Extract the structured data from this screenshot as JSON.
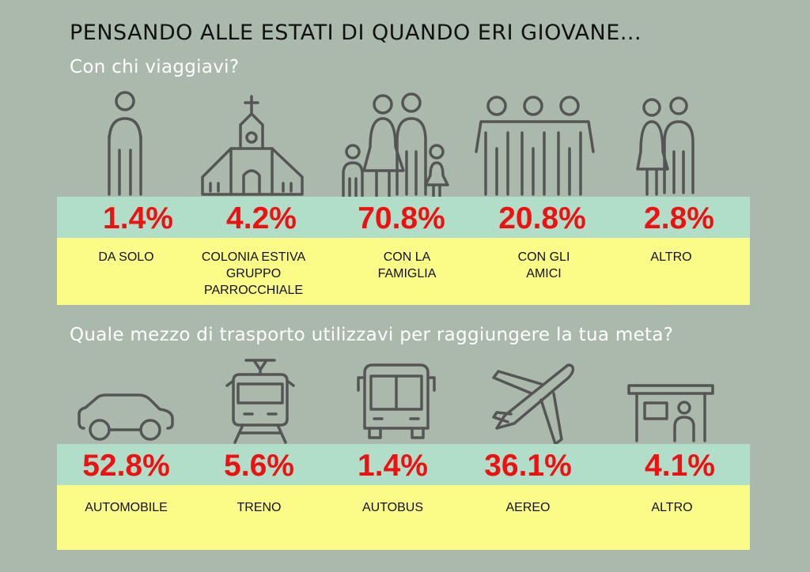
{
  "header": {
    "title": "PENSANDO ALLE ESTATI DI QUANDO ERI GIOVANE...",
    "question1": "Con chi viaggiavi?",
    "question2": "Quale mezzo di trasporto utilizzavi per raggiungere la tua meta?"
  },
  "travel_companions": [
    {
      "icon": "person-icon",
      "percent": "1.4%",
      "label": "DA SOLO"
    },
    {
      "icon": "church-icon",
      "percent": "4.2%",
      "label": "COLONIA ESTIVA\nGRUPPO\nPARROCCHIALE"
    },
    {
      "icon": "family-icon",
      "percent": "70.8%",
      "label": "CON LA\nFAMIGLIA"
    },
    {
      "icon": "friends-icon",
      "percent": "20.8%",
      "label": "CON GLI\nAMICI"
    },
    {
      "icon": "couple-icon",
      "percent": "2.8%",
      "label": "ALTRO"
    }
  ],
  "transport": [
    {
      "icon": "car-icon",
      "percent": "52.8%",
      "label": "AUTOMOBILE"
    },
    {
      "icon": "train-icon",
      "percent": "5.6%",
      "label": "TRENO"
    },
    {
      "icon": "bus-icon",
      "percent": "1.4%",
      "label": "AUTOBUS"
    },
    {
      "icon": "airplane-icon",
      "percent": "36.1%",
      "label": "AEREO"
    },
    {
      "icon": "bus-stop-icon",
      "percent": "4.1%",
      "label": "ALTRO"
    }
  ],
  "colors": {
    "background": "#abb9ad",
    "band_green": "#b1dec9",
    "band_yellow": "#fbfb88",
    "percent_red": "#ee1111",
    "subtitle_white": "#ffffff",
    "icon_gray": "#555555"
  }
}
